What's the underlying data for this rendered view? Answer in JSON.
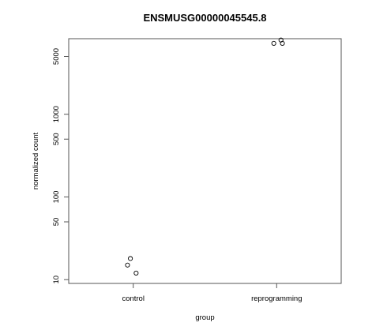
{
  "chart_data": {
    "type": "scatter",
    "title": "ENSMUSG00000045545.8",
    "xlabel": "group",
    "ylabel": "normalized count",
    "y_scale": "log",
    "ylim": [
      9,
      8200
    ],
    "y_ticks": [
      10,
      50,
      100,
      500,
      1000,
      5000
    ],
    "categories": [
      "control",
      "reprogramming"
    ],
    "points": [
      {
        "category": "control",
        "jitter": -0.02,
        "y": 18
      },
      {
        "category": "control",
        "jitter": -0.04,
        "y": 15
      },
      {
        "category": "control",
        "jitter": 0.02,
        "y": 12
      },
      {
        "category": "reprogramming",
        "jitter": 0.03,
        "y": 7900
      },
      {
        "category": "reprogramming",
        "jitter": -0.02,
        "y": 7200
      },
      {
        "category": "reprogramming",
        "jitter": 0.04,
        "y": 7200
      }
    ],
    "marker": "open-circle",
    "grid": false,
    "legend": "none"
  }
}
